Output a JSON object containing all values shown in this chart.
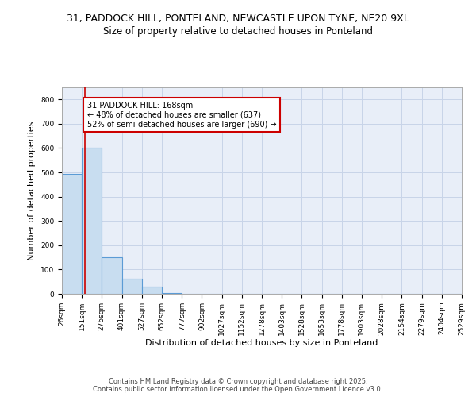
{
  "title1": "31, PADDOCK HILL, PONTELAND, NEWCASTLE UPON TYNE, NE20 9XL",
  "title2": "Size of property relative to detached houses in Ponteland",
  "xlabel": "Distribution of detached houses by size in Ponteland",
  "ylabel": "Number of detached properties",
  "bar_edges": [
    26,
    151,
    276,
    401,
    527,
    652,
    777,
    902,
    1027,
    1152,
    1278,
    1403,
    1528,
    1653,
    1778,
    1903,
    2028,
    2154,
    2279,
    2404,
    2529
  ],
  "bar_heights": [
    495,
    600,
    150,
    63,
    30,
    3,
    0,
    0,
    0,
    0,
    0,
    0,
    0,
    0,
    0,
    0,
    0,
    0,
    0,
    0
  ],
  "bar_color": "#c8ddf0",
  "bar_edgecolor": "#5b9bd5",
  "grid_color": "#c8d4e8",
  "background_color": "#e8eef8",
  "vline_x": 168,
  "vline_color": "#cc0000",
  "annotation_text": "31 PADDOCK HILL: 168sqm\n← 48% of detached houses are smaller (637)\n52% of semi-detached houses are larger (690) →",
  "annotation_box_facecolor": "#ffffff",
  "annotation_border_color": "#cc0000",
  "ylim": [
    0,
    850
  ],
  "yticks": [
    0,
    100,
    200,
    300,
    400,
    500,
    600,
    700,
    800
  ],
  "tick_labels": [
    "26sqm",
    "151sqm",
    "276sqm",
    "401sqm",
    "527sqm",
    "652sqm",
    "777sqm",
    "902sqm",
    "1027sqm",
    "1152sqm",
    "1278sqm",
    "1403sqm",
    "1528sqm",
    "1653sqm",
    "1778sqm",
    "1903sqm",
    "2028sqm",
    "2154sqm",
    "2279sqm",
    "2404sqm",
    "2529sqm"
  ],
  "footnote": "Contains HM Land Registry data © Crown copyright and database right 2025.\nContains public sector information licensed under the Open Government Licence v3.0.",
  "title_fontsize": 9,
  "subtitle_fontsize": 8.5,
  "axis_label_fontsize": 8,
  "tick_fontsize": 6.5,
  "annotation_fontsize": 7,
  "footnote_fontsize": 6
}
